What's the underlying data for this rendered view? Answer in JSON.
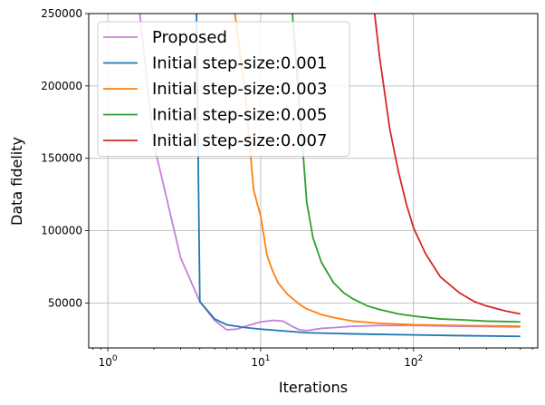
{
  "chart_data": {
    "type": "line",
    "xlabel": "Iterations",
    "ylabel": "Data fidelity",
    "xscale": "log",
    "xlim": [
      0.75,
      650
    ],
    "ylim": [
      19000,
      250000
    ],
    "grid": true,
    "legend_placement": "top-left",
    "x_ticks": [
      {
        "value": 1,
        "base": "10",
        "exp": "0"
      },
      {
        "value": 10,
        "base": "10",
        "exp": "1"
      },
      {
        "value": 100,
        "base": "10",
        "exp": "2"
      }
    ],
    "y_ticks": [
      {
        "value": 50000,
        "label": "50000"
      },
      {
        "value": 100000,
        "label": "100000"
      },
      {
        "value": 150000,
        "label": "150000"
      },
      {
        "value": 200000,
        "label": "200000"
      },
      {
        "value": 250000,
        "label": "250000"
      }
    ],
    "series": [
      {
        "name": "Proposed",
        "color": "#c77fd8",
        "points": [
          [
            1.6,
            255000
          ],
          [
            2,
            160000
          ],
          [
            3,
            81000
          ],
          [
            4,
            51000
          ],
          [
            5,
            38000
          ],
          [
            6,
            31500
          ],
          [
            7,
            32000
          ],
          [
            8,
            34000
          ],
          [
            10,
            37000
          ],
          [
            12,
            38000
          ],
          [
            14,
            37500
          ],
          [
            16,
            34000
          ],
          [
            18,
            31500
          ],
          [
            20,
            31000
          ],
          [
            25,
            32500
          ],
          [
            30,
            33000
          ],
          [
            40,
            34000
          ],
          [
            60,
            34500
          ],
          [
            100,
            34500
          ],
          [
            200,
            34000
          ],
          [
            500,
            33500
          ]
        ]
      },
      {
        "name": "Initial step-size:0.001",
        "color": "#1f77b4",
        "points": [
          [
            3.8,
            255000
          ],
          [
            4,
            51000
          ],
          [
            5,
            39000
          ],
          [
            6,
            35000
          ],
          [
            8,
            33000
          ],
          [
            10,
            32000
          ],
          [
            15,
            30500
          ],
          [
            20,
            29500
          ],
          [
            30,
            29000
          ],
          [
            50,
            28500
          ],
          [
            100,
            28000
          ],
          [
            200,
            27500
          ],
          [
            500,
            27000
          ]
        ]
      },
      {
        "name": "Initial step-size:0.003",
        "color": "#ff7f0e",
        "points": [
          [
            6.7,
            255000
          ],
          [
            8,
            190000
          ],
          [
            9,
            128000
          ],
          [
            10,
            110000
          ],
          [
            11,
            83000
          ],
          [
            12,
            72000
          ],
          [
            13,
            64000
          ],
          [
            15,
            56000
          ],
          [
            18,
            49000
          ],
          [
            20,
            46000
          ],
          [
            25,
            42000
          ],
          [
            30,
            40000
          ],
          [
            40,
            37500
          ],
          [
            60,
            36000
          ],
          [
            100,
            35000
          ],
          [
            200,
            34500
          ],
          [
            500,
            34000
          ]
        ]
      },
      {
        "name": "Initial step-size:0.005",
        "color": "#2ca02c",
        "points": [
          [
            16,
            255000
          ],
          [
            18,
            185000
          ],
          [
            20,
            120000
          ],
          [
            22,
            95000
          ],
          [
            25,
            78000
          ],
          [
            30,
            64000
          ],
          [
            35,
            57000
          ],
          [
            40,
            53000
          ],
          [
            50,
            48000
          ],
          [
            60,
            45500
          ],
          [
            80,
            42500
          ],
          [
            100,
            41000
          ],
          [
            150,
            39000
          ],
          [
            200,
            38500
          ],
          [
            300,
            37500
          ],
          [
            500,
            37000
          ]
        ]
      },
      {
        "name": "Initial step-size:0.007",
        "color": "#d62728",
        "points": [
          [
            55,
            255000
          ],
          [
            60,
            220000
          ],
          [
            70,
            170000
          ],
          [
            80,
            140000
          ],
          [
            90,
            118000
          ],
          [
            100,
            102000
          ],
          [
            120,
            84000
          ],
          [
            150,
            68000
          ],
          [
            200,
            57000
          ],
          [
            250,
            51000
          ],
          [
            300,
            48000
          ],
          [
            400,
            44500
          ],
          [
            500,
            42500
          ]
        ]
      }
    ]
  }
}
